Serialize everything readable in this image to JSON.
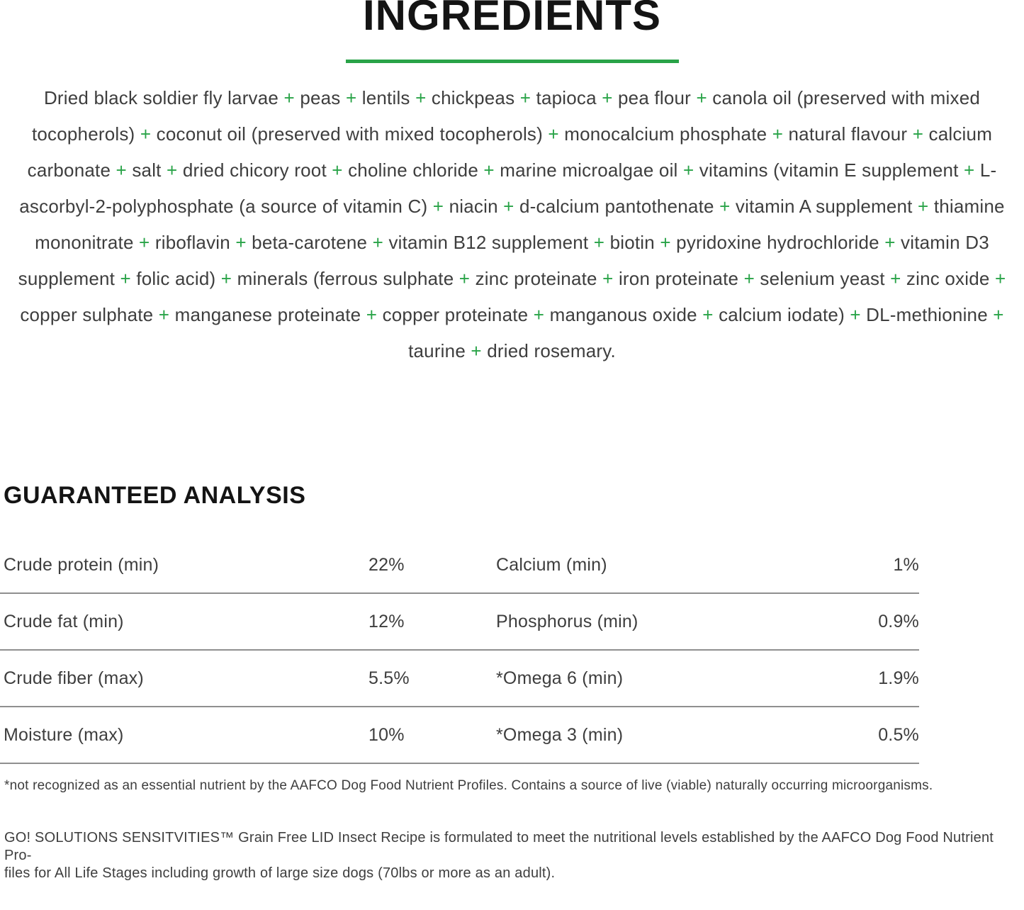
{
  "header": {
    "title": "INGREDIENTS",
    "accent_color": "#29a348"
  },
  "ingredients": {
    "text": "Dried black soldier fly larvae + peas + lentils + chickpeas + tapioca + pea flour + canola oil (preserved with mixed tocopherols) + coconut oil (preserved with mixed tocopherols) + monocalcium phosphate + natural flavour + calcium carbonate + salt + dried chicory root + choline chloride + marine microalgae oil + vitamins (vitamin E supplement + L-ascorbyl-2-polyphosphate (a source of vitamin C) + niacin + d-calcium pantothenate + vitamin A supplement + thiamine mononitrate + riboflavin + beta-carotene + vitamin B12 supplement + biotin + pyridoxine hydrochloride + vitamin D3 supplement + folic acid) + minerals (ferrous sulphate + zinc proteinate + iron proteinate + selenium yeast + zinc oxide + copper sulphate + manganese proteinate + copper proteinate + manganous oxide + calcium iodate) + DL-methionine + taurine + dried rosemary."
  },
  "guaranteed_analysis": {
    "title": "GUARANTEED ANALYSIS",
    "rows": [
      {
        "left_label": "Crude protein (min)",
        "left_value": "22%",
        "right_label": "Calcium (min)",
        "right_value": "1%"
      },
      {
        "left_label": "Crude fat (min)",
        "left_value": "12%",
        "right_label": "Phosphorus (min)",
        "right_value": "0.9%"
      },
      {
        "left_label": "Crude fiber (max)",
        "left_value": "5.5%",
        "right_label": "*Omega 6 (min)",
        "right_value": "1.9%"
      },
      {
        "left_label": "Moisture (max)",
        "left_value": "10%",
        "right_label": "*Omega 3 (min)",
        "right_value": "0.5%"
      }
    ]
  },
  "footnotes": {
    "asterisk_note": "*not recognized as an essential nutrient by the AAFCO Dog Food Nutrient Profiles. Contains a source of live (viable) naturally occurring microorganisms.",
    "formulation_lines": [
      "GO! SOLUTIONS SENSITVITIES™ Grain Free LID Insect Recipe is formulated to meet the nutritional levels established by the AAFCO Dog Food Nutrient Pro-",
      "files for All Life Stages including growth of large size dogs (70lbs or more as an adult)."
    ]
  }
}
